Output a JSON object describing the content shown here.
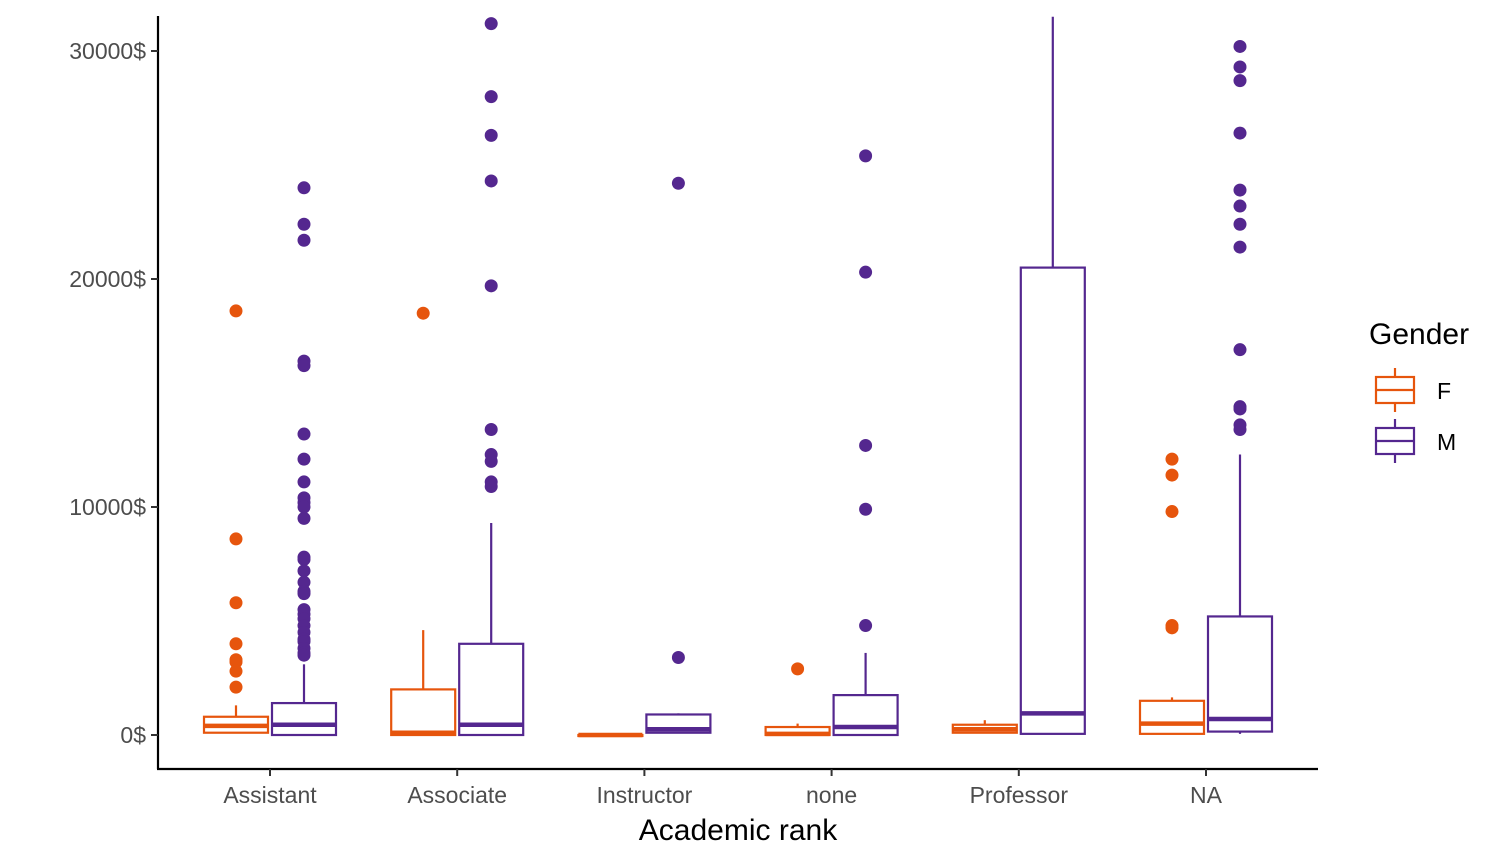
{
  "chart_data": {
    "type": "boxplot",
    "title": "",
    "xlabel": "Academic rank",
    "ylabel": "",
    "categories": [
      "Assistant",
      "Associate",
      "Instructor",
      "none",
      "Professor",
      "NA"
    ],
    "y_ticks": [
      0,
      10000,
      20000,
      30000
    ],
    "y_tick_labels": [
      "0$",
      "10000$",
      "20000$",
      "30000$"
    ],
    "ylim": [
      -1500,
      31500
    ],
    "grid": false,
    "legend": {
      "title": "Gender",
      "position": "right",
      "entries": [
        {
          "label": "F",
          "color": "#e6550d"
        },
        {
          "label": "M",
          "color": "#54278f"
        }
      ]
    },
    "series": [
      {
        "name": "F",
        "color": "#e6550d",
        "boxes": [
          {
            "category": "Assistant",
            "lower_whisker": 100,
            "q1": 100,
            "median": 400,
            "q3": 800,
            "upper_whisker": 1300,
            "outliers": [
              18600,
              8600,
              5800,
              4000,
              3300,
              3200,
              2800,
              2100
            ]
          },
          {
            "category": "Associate",
            "lower_whisker": 0,
            "q1": 0,
            "median": 100,
            "q3": 2000,
            "upper_whisker": 4600,
            "outliers": [
              18500
            ]
          },
          {
            "category": "Instructor",
            "lower_whisker": 0,
            "q1": 0,
            "median": 0,
            "q3": 0,
            "upper_whisker": 0,
            "outliers": []
          },
          {
            "category": "none",
            "lower_whisker": 0,
            "q1": 0,
            "median": 50,
            "q3": 350,
            "upper_whisker": 500,
            "outliers": [
              2900
            ]
          },
          {
            "category": "Professor",
            "lower_whisker": 100,
            "q1": 100,
            "median": 250,
            "q3": 450,
            "upper_whisker": 650,
            "outliers": []
          },
          {
            "category": "NA",
            "lower_whisker": 50,
            "q1": 50,
            "median": 500,
            "q3": 1500,
            "upper_whisker": 1650,
            "outliers": [
              12100,
              11400,
              9800,
              4800,
              4700
            ]
          }
        ]
      },
      {
        "name": "M",
        "color": "#54278f",
        "boxes": [
          {
            "category": "Assistant",
            "lower_whisker": 0,
            "q1": 0,
            "median": 450,
            "q3": 1400,
            "upper_whisker": 3100,
            "outliers": [
              24000,
              22400,
              21700,
              16400,
              16200,
              13200,
              12100,
              11100,
              10400,
              10200,
              10000,
              9500,
              7800,
              7700,
              7200,
              6700,
              6300,
              6200,
              5500,
              5300,
              5100,
              4800,
              4500,
              4200,
              4100,
              3800,
              3600,
              3500
            ]
          },
          {
            "category": "Associate",
            "lower_whisker": 0,
            "q1": 0,
            "median": 450,
            "q3": 4000,
            "upper_whisker": 9300,
            "outliers": [
              31200,
              28000,
              26300,
              24300,
              19700,
              13400,
              12300,
              12000,
              11100,
              10900
            ]
          },
          {
            "category": "Instructor",
            "lower_whisker": 100,
            "q1": 100,
            "median": 250,
            "q3": 900,
            "upper_whisker": 950,
            "outliers": [
              24200,
              3400
            ]
          },
          {
            "category": "none",
            "lower_whisker": 0,
            "q1": 0,
            "median": 350,
            "q3": 1750,
            "upper_whisker": 3600,
            "outliers": [
              25400,
              20300,
              12700,
              9900,
              4800
            ]
          },
          {
            "category": "Professor",
            "lower_whisker": 50,
            "q1": 50,
            "median": 950,
            "q3": 20500,
            "upper_whisker": 31500,
            "outliers": []
          },
          {
            "category": "NA",
            "lower_whisker": 50,
            "q1": 150,
            "median": 700,
            "q3": 5200,
            "upper_whisker": 12300,
            "outliers": [
              30200,
              29300,
              28700,
              26400,
              23900,
              23200,
              22400,
              21400,
              16900,
              14400,
              14300,
              13600,
              13400
            ]
          }
        ]
      }
    ]
  }
}
